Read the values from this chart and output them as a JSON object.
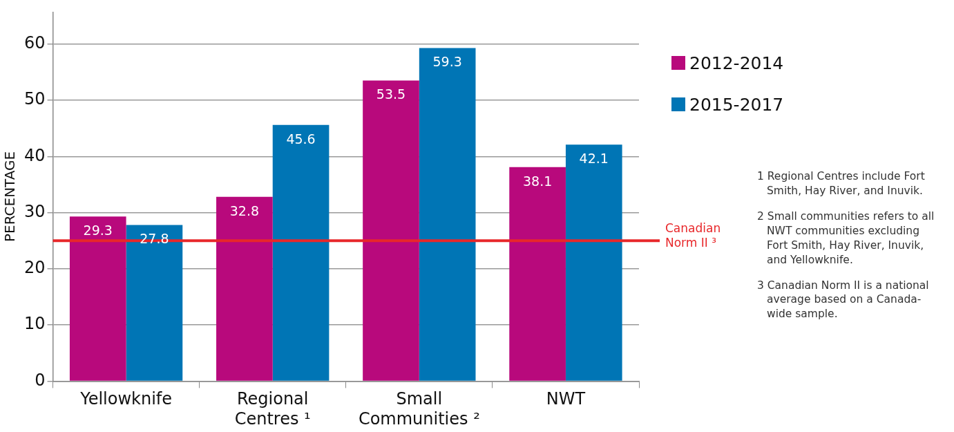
{
  "chart_data": {
    "type": "bar",
    "ylabel": "PERCENTAGE",
    "categories": [
      "Yellowknife",
      "Regional Centres ¹",
      "Small Communities ²",
      "NWT"
    ],
    "series": [
      {
        "name": "2012-2014",
        "color": "#b8097c",
        "values": [
          29.3,
          32.8,
          53.5,
          38.1
        ]
      },
      {
        "name": "2015-2017",
        "color": "#0075b5",
        "values": [
          27.8,
          45.6,
          59.3,
          42.1
        ]
      }
    ],
    "ylim": [
      0,
      65.7
    ],
    "yticks": [
      0,
      10,
      20,
      30,
      40,
      50,
      60
    ],
    "grid": "y",
    "legend": "top right",
    "data_labels": true,
    "ref_lines": [
      {
        "axis": "y",
        "value": 25,
        "label": "Canadian Norm II ³",
        "color": "#e8272a"
      }
    ],
    "annotations": [
      "1 Regional Centres include Fort Smith, Hay River, and Inuvik.",
      "2 Small communities refers to all NWT communities excluding Fort Smith, Hay River, Inuvik, and Yellowknife.",
      "3 Canadian Norm II is a national average based on a Canada-wide sample."
    ]
  }
}
